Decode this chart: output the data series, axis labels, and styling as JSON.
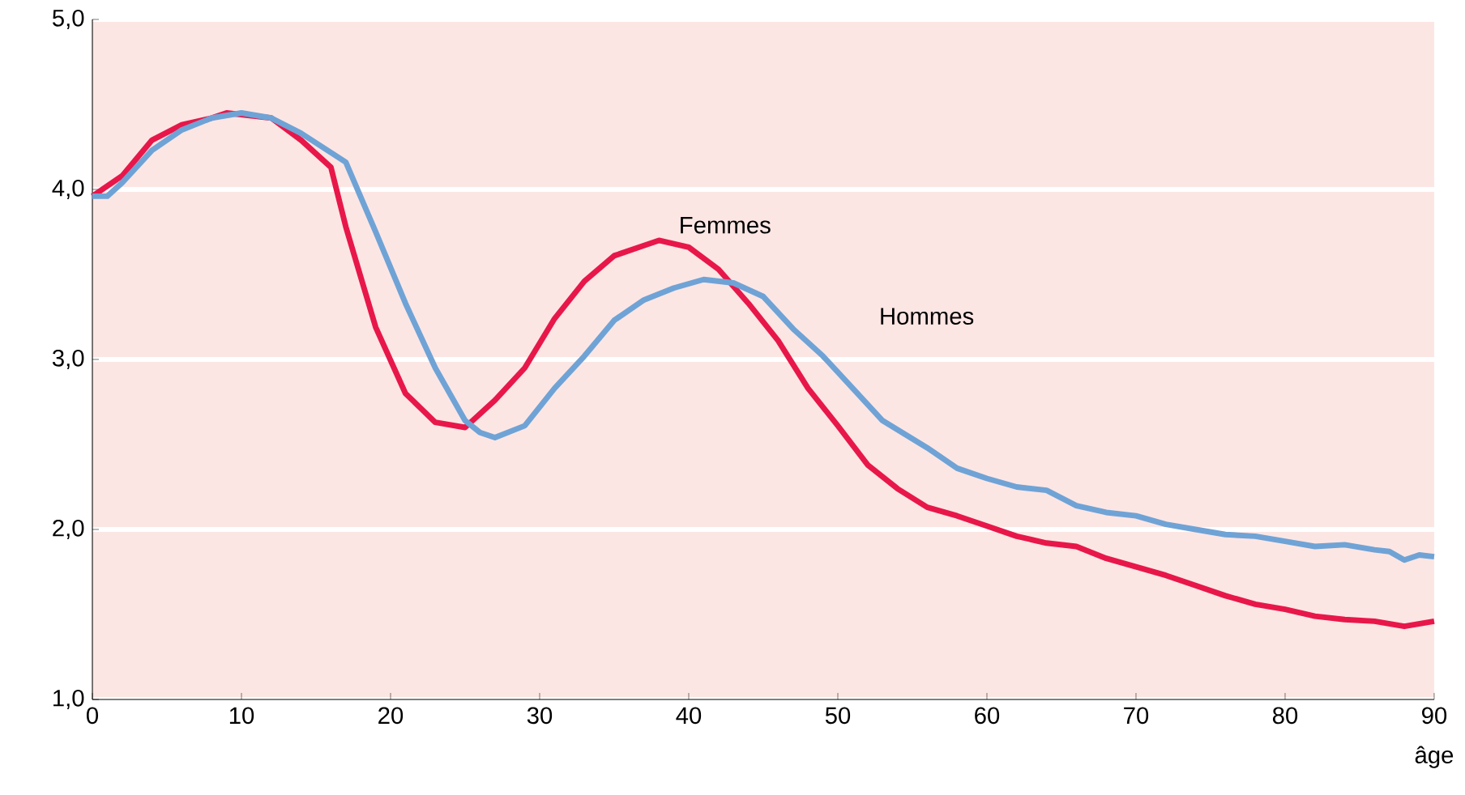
{
  "chart_data": {
    "type": "line",
    "xlabel": "âge",
    "xlim": [
      0,
      90
    ],
    "xticks": [
      0,
      10,
      20,
      30,
      40,
      50,
      60,
      70,
      80,
      90
    ],
    "ylim": [
      1,
      5
    ],
    "yticks": [
      {
        "value": 1,
        "label": "1,0"
      },
      {
        "value": 2,
        "label": "2,0"
      },
      {
        "value": 3,
        "label": "3,0"
      },
      {
        "value": 4,
        "label": "4,0"
      },
      {
        "value": 5,
        "label": "5,0"
      }
    ],
    "grid": "y",
    "series": [
      {
        "name": "Femmes",
        "color": "#e8174a",
        "x": [
          0,
          2,
          4,
          6,
          8,
          9,
          12,
          14,
          15,
          16,
          17,
          19,
          21,
          23,
          25,
          27,
          29,
          31,
          33,
          35,
          37,
          38,
          40,
          42,
          44,
          46,
          48,
          50,
          52,
          54,
          56,
          58,
          60,
          62,
          64,
          66,
          68,
          70,
          72,
          74,
          76,
          78,
          80,
          82,
          84,
          86,
          88,
          90
        ],
        "values": [
          3.96,
          4.08,
          4.29,
          4.38,
          4.42,
          4.45,
          4.42,
          4.29,
          4.21,
          4.13,
          3.78,
          3.19,
          2.8,
          2.63,
          2.6,
          2.76,
          2.95,
          3.24,
          3.46,
          3.61,
          3.67,
          3.7,
          3.66,
          3.53,
          3.33,
          3.11,
          2.83,
          2.61,
          2.38,
          2.24,
          2.13,
          2.08,
          2.02,
          1.96,
          1.92,
          1.9,
          1.83,
          1.78,
          1.73,
          1.67,
          1.61,
          1.56,
          1.53,
          1.49,
          1.47,
          1.46,
          1.43,
          1.46
        ]
      },
      {
        "name": "Hommes",
        "color": "#6fa3d6",
        "x": [
          0,
          1,
          2,
          4,
          6,
          8,
          10,
          12,
          14,
          17,
          19,
          21,
          23,
          25,
          26,
          27,
          29,
          31,
          33,
          35,
          37,
          39,
          41,
          43,
          45,
          47,
          49,
          51,
          53,
          56,
          58,
          60,
          62,
          64,
          66,
          68,
          70,
          72,
          74,
          76,
          78,
          80,
          82,
          84,
          86,
          87,
          88,
          89,
          90
        ],
        "values": [
          3.96,
          3.96,
          4.04,
          4.23,
          4.35,
          4.42,
          4.45,
          4.42,
          4.33,
          4.16,
          3.75,
          3.33,
          2.95,
          2.64,
          2.57,
          2.54,
          2.61,
          2.83,
          3.02,
          3.23,
          3.35,
          3.42,
          3.47,
          3.45,
          3.37,
          3.18,
          3.02,
          2.83,
          2.64,
          2.48,
          2.36,
          2.3,
          2.25,
          2.23,
          2.14,
          2.1,
          2.08,
          2.03,
          2.0,
          1.97,
          1.96,
          1.93,
          1.9,
          1.91,
          1.88,
          1.87,
          1.82,
          1.85,
          1.84
        ]
      }
    ]
  }
}
